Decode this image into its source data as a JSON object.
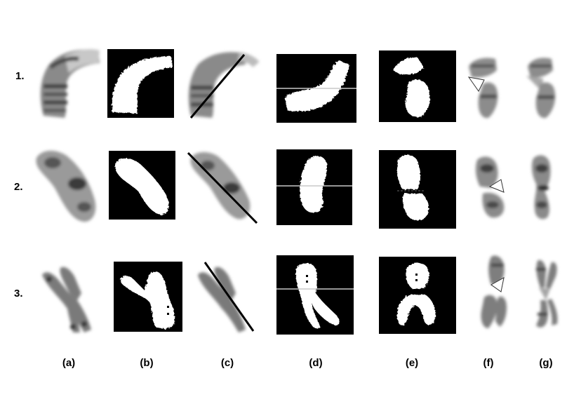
{
  "rows": [
    {
      "label": "1."
    },
    {
      "label": "2."
    },
    {
      "label": "3."
    }
  ],
  "columns": [
    {
      "label": "(a)"
    },
    {
      "label": "(b)"
    },
    {
      "label": "(c)"
    },
    {
      "label": "(d)"
    },
    {
      "label": "(e)"
    },
    {
      "label": "(f)"
    },
    {
      "label": "(g)"
    }
  ]
}
